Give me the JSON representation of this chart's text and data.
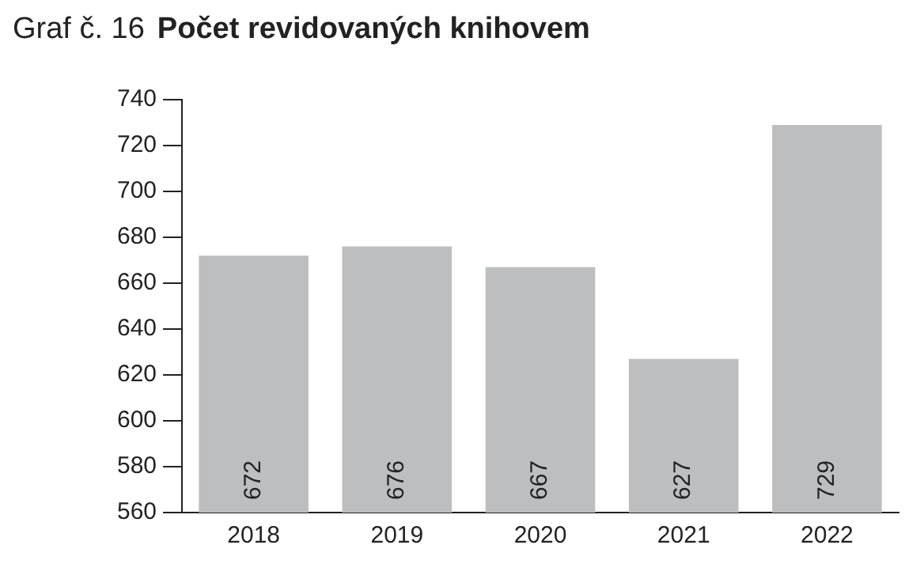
{
  "chart_data": {
    "type": "bar",
    "title": "Počet revidovaných knihovem",
    "annotations": [
      "Graf č. 16"
    ],
    "categories": [
      "2018",
      "2019",
      "2020",
      "2021",
      "2022"
    ],
    "values": [
      672,
      676,
      667,
      627,
      729
    ],
    "color": "#bcbec0",
    "ylim": [
      560,
      740
    ],
    "yticks": [
      560,
      580,
      600,
      620,
      640,
      660,
      680,
      700,
      720,
      740
    ],
    "grid": false,
    "data_labels": true
  }
}
